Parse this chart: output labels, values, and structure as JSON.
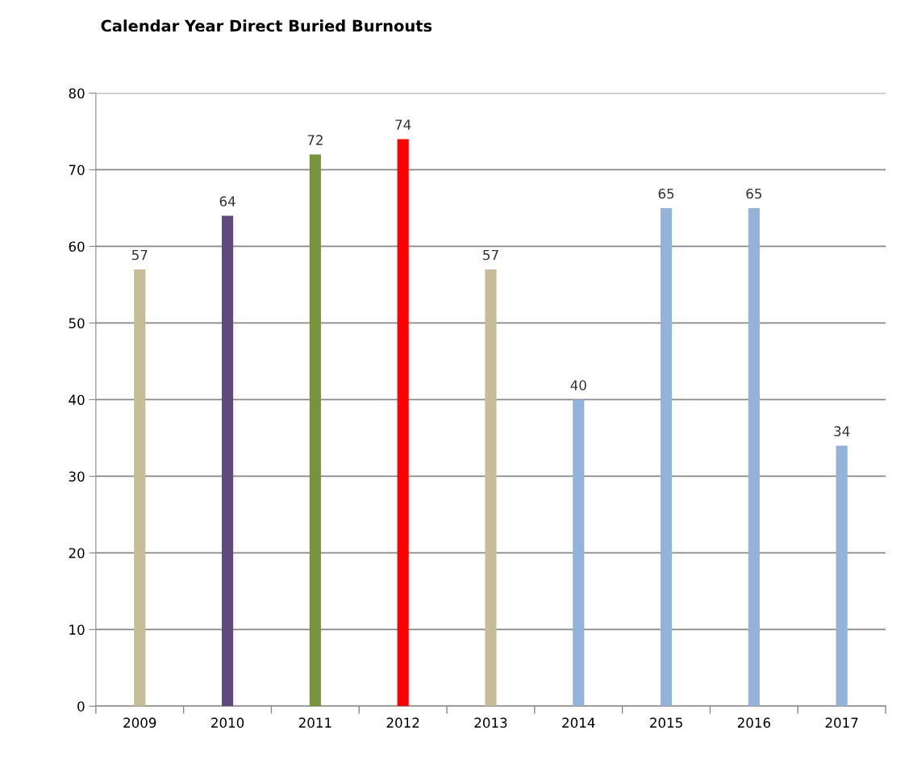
{
  "chart_data": {
    "type": "bar",
    "title": "Calendar Year Direct Buried Burnouts",
    "categories": [
      "2009",
      "2010",
      "2011",
      "2012",
      "2013",
      "2014",
      "2015",
      "2016",
      "2017"
    ],
    "values": [
      57,
      64,
      72,
      74,
      57,
      40,
      65,
      65,
      34
    ],
    "colors": [
      "#c4bd97",
      "#604a7b",
      "#77933c",
      "#ff0000",
      "#c4bd97",
      "#95b3d7",
      "#95b3d7",
      "#95b3d7",
      "#95b3d7"
    ],
    "ylim": [
      0,
      80
    ],
    "yticks": [
      0,
      10,
      20,
      30,
      40,
      50,
      60,
      70,
      80
    ],
    "grid": "y",
    "data_labels": true
  }
}
